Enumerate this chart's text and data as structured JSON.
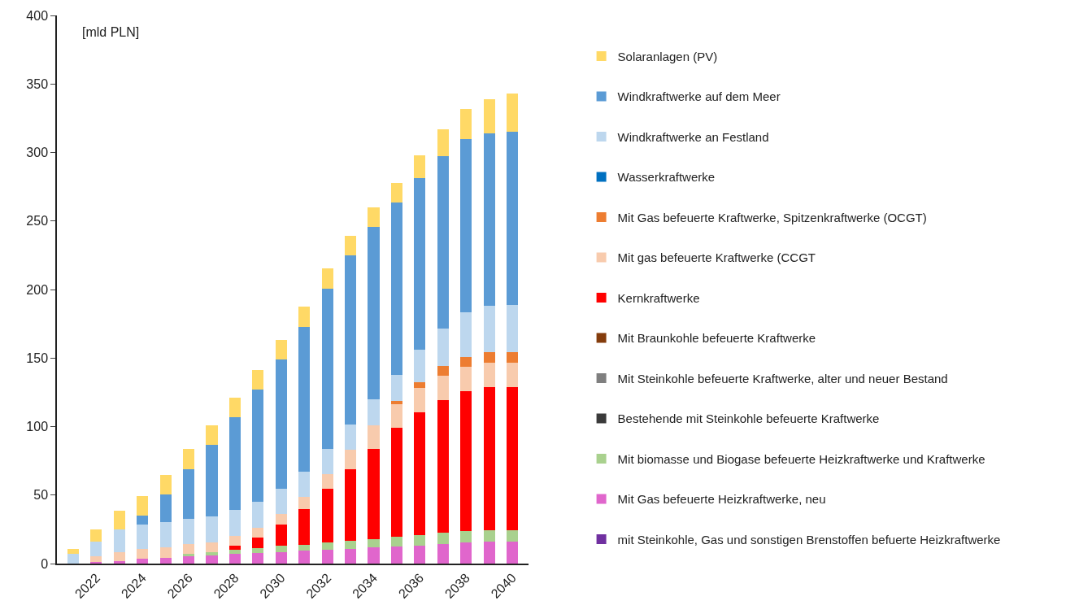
{
  "chart_data": {
    "type": "bar",
    "stacked": true,
    "ylabel": "[mld PLN]",
    "categories": [
      null,
      "2022",
      null,
      "2024",
      null,
      "2026",
      null,
      "2028",
      null,
      "2030",
      null,
      "2032",
      null,
      "2034",
      null,
      "2036",
      null,
      "2038",
      null,
      "2040"
    ],
    "ylim": [
      0,
      400
    ],
    "yticks": [
      0,
      50,
      100,
      150,
      200,
      250,
      300,
      350,
      400
    ],
    "legend": "right",
    "series": [
      {
        "name": "mit Steinkohle, Gas und sonstigen Brenstoffen befuerte Heizkraftwerke",
        "color": "#7030a0",
        "values": [
          0,
          0,
          0,
          0,
          0,
          0,
          0,
          0,
          0,
          0,
          0,
          0,
          0,
          0,
          0,
          0,
          0,
          0,
          0,
          0
        ]
      },
      {
        "name": "Mit Gas befeuerte Heizkraftwerke, neu",
        "color": "#e066cc",
        "values": [
          0,
          1.4,
          2,
          3.5,
          4.3,
          5.3,
          5.9,
          6.9,
          7.5,
          8.5,
          9.3,
          9.9,
          10.7,
          11.6,
          12.5,
          13.2,
          14.2,
          15.4,
          15.8,
          15.8
        ]
      },
      {
        "name": "Mit biomasse und Biogase befeuerte Heizkraftwerke und Kraftwerke",
        "color": "#a9d18e",
        "values": [
          0,
          0,
          0,
          0,
          0,
          1.6,
          2.4,
          3.2,
          3.9,
          4.3,
          4.5,
          5.3,
          5.7,
          6.4,
          6.8,
          7.6,
          8.1,
          8.3,
          8.3,
          8.4
        ]
      },
      {
        "name": "Bestehende mit Steinkohle befeuerte Kraftwerke",
        "color": "#3a3a3a",
        "values": [
          0,
          0,
          0,
          0,
          0,
          0,
          0,
          0,
          0,
          0,
          0,
          0,
          0,
          0,
          0,
          0,
          0,
          0,
          0,
          0
        ]
      },
      {
        "name": "Mit Steinkohle befeuerte Kraftwerke, alter und neuer Bestand",
        "color": "#7f7f7f",
        "values": [
          0,
          0,
          0,
          0,
          0,
          0,
          0,
          0,
          0,
          0,
          0,
          0,
          0,
          0,
          0,
          0,
          0,
          0,
          0,
          0
        ]
      },
      {
        "name": "Mit Braunkohle befeuerte Kraftwerke",
        "color": "#843c0c",
        "values": [
          0,
          0,
          0,
          0,
          0,
          0,
          0,
          0,
          0,
          0,
          0,
          0,
          0,
          0,
          0,
          0,
          0,
          0,
          0,
          0
        ]
      },
      {
        "name": "Kernkraftwerke",
        "color": "#ff0000",
        "values": [
          0,
          0,
          0,
          0,
          0,
          0,
          0,
          3.1,
          7.8,
          15.9,
          26.1,
          39.6,
          52.6,
          65.9,
          79.6,
          89.3,
          96.7,
          101.9,
          104.7,
          104.6
        ]
      },
      {
        "name": "Mit gas befeuerte Kraftwerke (CCGT",
        "color": "#f8cbad",
        "values": [
          0,
          4.1,
          6.3,
          7.2,
          7.6,
          7.1,
          7.3,
          7.0,
          7.1,
          7.3,
          8.9,
          10.5,
          13.8,
          17.0,
          17.2,
          17.9,
          18.3,
          17.9,
          17.5,
          18.0
        ]
      },
      {
        "name": "Mit Gas befeuerte Kraftwerke, Spitzenkraftwerke (OCGT)",
        "color": "#ed7d31",
        "values": [
          0,
          0,
          0,
          0,
          0,
          0,
          0,
          0,
          0,
          0,
          0,
          0,
          0,
          0,
          2.6,
          4.5,
          6.7,
          7.5,
          8.2,
          7.7
        ]
      },
      {
        "name": "Wasserkraftwerke",
        "color": "#0070c0",
        "values": [
          0,
          0,
          0,
          0,
          0,
          0,
          0,
          0,
          0,
          0,
          0,
          0,
          0,
          0,
          0,
          0,
          0,
          0,
          0,
          0
        ]
      },
      {
        "name": "Windkraftwerke an Festland",
        "color": "#bdd7ee",
        "values": [
          6.9,
          10.3,
          16.8,
          18,
          18.4,
          18.6,
          18.6,
          18.7,
          18.8,
          18.4,
          18.4,
          18.4,
          18.4,
          18.7,
          18.7,
          23.3,
          27.7,
          32.6,
          33.8,
          34.4
        ]
      },
      {
        "name": "Windkraftwerke auf dem Meer",
        "color": "#5b9bd5",
        "values": [
          0,
          0,
          0,
          6.5,
          20.1,
          36.4,
          52.4,
          67.9,
          81.9,
          94.3,
          105.8,
          117.1,
          123.7,
          125.9,
          126.1,
          125.7,
          125.6,
          125.9,
          125.8,
          126.0
        ]
      },
      {
        "name": "Solaranlagen (PV)",
        "color": "#ffd966",
        "values": [
          4,
          8.9,
          13.3,
          13.8,
          14.5,
          14.4,
          14.4,
          14.2,
          14.2,
          14.5,
          14.5,
          14.4,
          14.3,
          14.5,
          14.2,
          16.6,
          19.6,
          22.1,
          24.8,
          27.9
        ]
      }
    ]
  }
}
